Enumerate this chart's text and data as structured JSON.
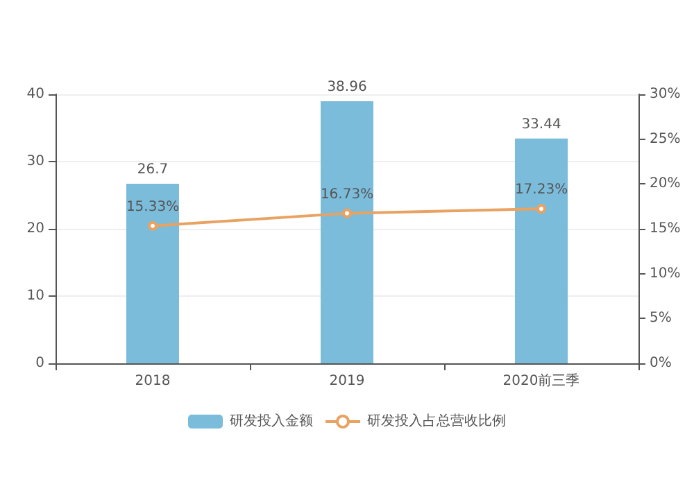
{
  "chart_data": {
    "type": "bar",
    "categories": [
      "2018",
      "2019",
      "2020前三季"
    ],
    "series": [
      {
        "name": "研发投入金额",
        "color": "#7bbcdb",
        "values": [
          26.7,
          38.96,
          33.44
        ],
        "value_labels": [
          "26.7",
          "38.96",
          "33.44"
        ]
      },
      {
        "name": "研发投入占总营收比例",
        "type": "line",
        "axis": "y2",
        "color": "#e8a262",
        "values": [
          15.33,
          16.73,
          17.23
        ],
        "value_labels": [
          "15.33%",
          "16.73%",
          "17.23%"
        ]
      }
    ],
    "ylim": [
      0,
      40
    ],
    "yticks": [
      0,
      10,
      20,
      30,
      40
    ],
    "y2lim": [
      0,
      30
    ],
    "y2ticks": [
      {
        "value": 0,
        "label": "0%"
      },
      {
        "value": 5,
        "label": "5%"
      },
      {
        "value": 10,
        "label": "10%"
      },
      {
        "value": 15,
        "label": "15%"
      },
      {
        "value": 20,
        "label": "20%"
      },
      {
        "value": 25,
        "label": "25%"
      },
      {
        "value": 30,
        "label": "30%"
      }
    ],
    "grid": "y",
    "legend": "bottom",
    "marker": "circle"
  }
}
